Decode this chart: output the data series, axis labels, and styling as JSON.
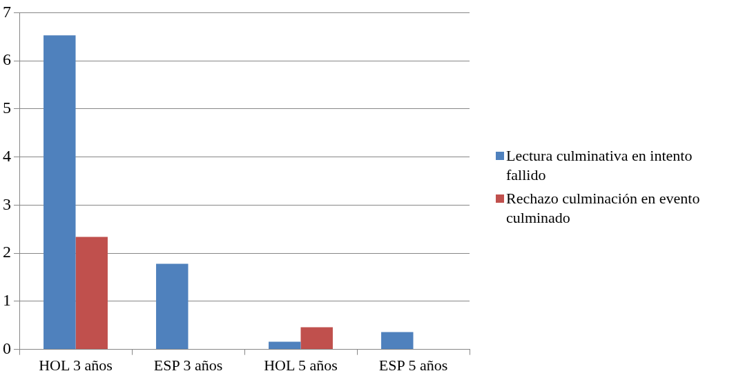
{
  "chart_data": {
    "type": "bar",
    "categories": [
      "HOL 3 años",
      "ESP 3 años",
      "HOL 5 años",
      "ESP 5 años"
    ],
    "series": [
      {
        "name": "Lectura culminativa en intento fallido",
        "color": "#4f81bd",
        "values": [
          6.53,
          1.78,
          0.16,
          0.36
        ]
      },
      {
        "name": "Rechazo culminación en evento culminado",
        "color": "#c0504d",
        "values": [
          2.34,
          0,
          0.46,
          0
        ]
      }
    ],
    "ylim": [
      0,
      7
    ],
    "yticks": [
      0,
      1,
      2,
      3,
      4,
      5,
      6,
      7
    ],
    "grid": "y",
    "legend": "right"
  }
}
